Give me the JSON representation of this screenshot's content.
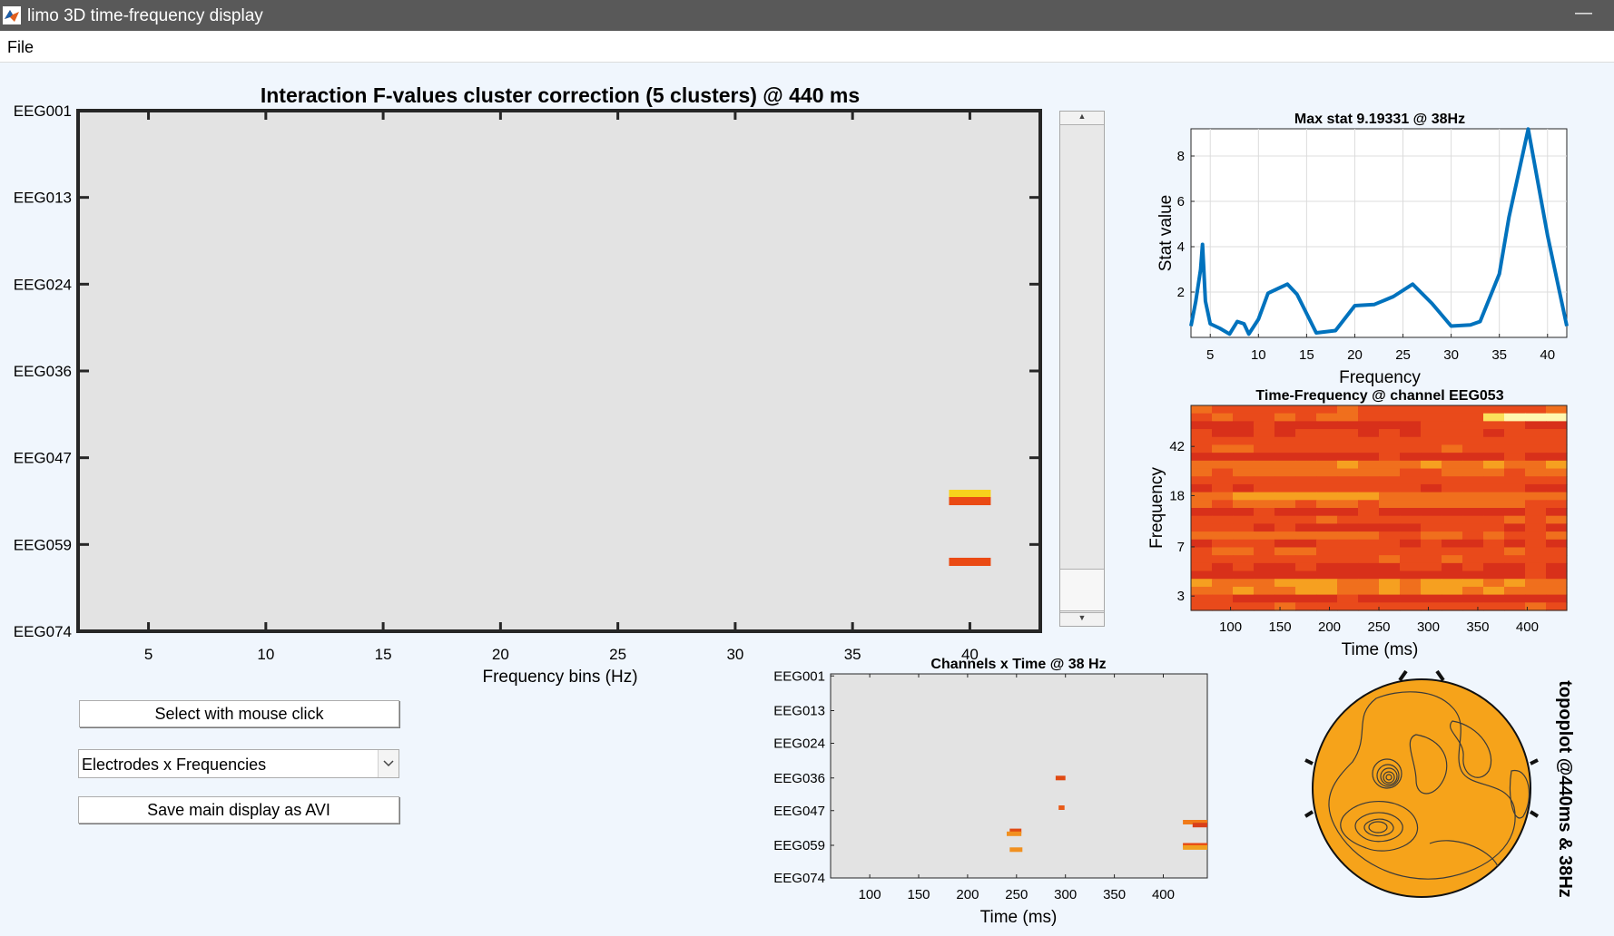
{
  "window": {
    "title": "limo 3D time-frequency display",
    "minimize_glyph": "—"
  },
  "menu": {
    "file": "File"
  },
  "controls": {
    "select_button": "Select with mouse click",
    "view_dropdown_value": "Electrodes x Frequencies",
    "save_button": "Save main display as AVI"
  },
  "icons": {
    "app": "matlab-app-icon",
    "dropdown": "chevron-down-icon",
    "scroll_up": "scroll-up-icon",
    "scroll_down": "scroll-down-icon"
  },
  "main_plot": {
    "title": "Interaction F-values cluster correction (5 clusters) @ 440 ms",
    "xlabel": "Frequency bins (Hz)",
    "xticks": [
      "5",
      "10",
      "15",
      "20",
      "25",
      "30",
      "35",
      "40"
    ],
    "yticks": [
      "EEG001",
      "EEG013",
      "EEG024",
      "EEG036",
      "EEG047",
      "EEG059",
      "EEG074"
    ],
    "background": "#e3e3e3"
  },
  "max_stat_plot": {
    "title": "Max stat 9.19331 @ 38Hz",
    "xlabel": "Frequency",
    "ylabel": "Stat value",
    "xticks": [
      "5",
      "10",
      "15",
      "20",
      "25",
      "30",
      "35",
      "40"
    ],
    "yticks": [
      "2",
      "4",
      "6",
      "8"
    ],
    "line_color": "#0072bd"
  },
  "tf_plot": {
    "title": "Time-Frequency @ channel EEG053",
    "xlabel": "Time (ms)",
    "ylabel": "Frequency",
    "xticks": [
      "100",
      "150",
      "200",
      "250",
      "300",
      "350",
      "400"
    ],
    "yticks": [
      "42",
      "18",
      "7",
      "3"
    ]
  },
  "ct_plot": {
    "title": "Channels x Time @ 38 Hz",
    "xlabel": "Time (ms)",
    "xticks": [
      "100",
      "150",
      "200",
      "250",
      "300",
      "350",
      "400"
    ],
    "yticks": [
      "EEG001",
      "EEG013",
      "EEG024",
      "EEG036",
      "EEG047",
      "EEG059",
      "EEG074"
    ]
  },
  "topoplot": {
    "label": "topoplot @440ms & 38Hz",
    "fill": "#f6a31a"
  },
  "chart_data": [
    {
      "type": "line",
      "title": "Max stat 9.19331 @ 38Hz",
      "xlabel": "Frequency",
      "ylabel": "Stat value",
      "xlim": [
        3,
        42
      ],
      "ylim": [
        0,
        9.2
      ],
      "grid": true,
      "series": [
        {
          "x": [
            3,
            3.5,
            4,
            4.2,
            4.5,
            5,
            6,
            7,
            7.8,
            8.5,
            9,
            10,
            11,
            13,
            14,
            16,
            18,
            20,
            22,
            24,
            26,
            28,
            30,
            32,
            33,
            35,
            36,
            38,
            40,
            42
          ],
          "y": [
            0.5,
            1.6,
            3.0,
            4.1,
            1.6,
            0.6,
            0.4,
            0.15,
            0.7,
            0.6,
            0.15,
            0.8,
            1.95,
            2.35,
            1.9,
            0.2,
            0.3,
            1.4,
            1.45,
            1.8,
            2.35,
            1.5,
            0.5,
            0.55,
            0.7,
            2.8,
            5.3,
            9.19,
            4.5,
            0.5
          ]
        }
      ]
    },
    {
      "type": "heatmap",
      "title": "Interaction F-values cluster correction (5 clusters) @ 440 ms",
      "xlabel": "Frequency bins (Hz)",
      "xlim": [
        2,
        43
      ],
      "cells": [
        {
          "x": 40,
          "channel": "EEG052",
          "color": "#f7d21c"
        },
        {
          "x": 40,
          "channel": "EEG053",
          "color": "#ea4a14"
        },
        {
          "x": 40,
          "channel": "EEG062",
          "color": "#ea4a14"
        }
      ]
    },
    {
      "type": "heatmap",
      "title": "Channels x Time @ 38 Hz",
      "xlabel": "Time (ms)",
      "xlim": [
        60,
        445
      ],
      "cells": [
        {
          "t0": 290,
          "t1": 300,
          "channel": "EEG036",
          "color": "#e04a14"
        },
        {
          "t0": 293,
          "t1": 299,
          "channel": "EEG046",
          "color": "#e85a18"
        },
        {
          "t0": 243,
          "t1": 255,
          "channel": "EEG054",
          "color": "#e04a14"
        },
        {
          "t0": 240,
          "t1": 255,
          "channel": "EEG055",
          "color": "#f19020"
        },
        {
          "t0": 243,
          "t1": 256,
          "channel": "EEG061",
          "color": "#f19020"
        },
        {
          "t0": 420,
          "t1": 445,
          "channel": "EEG051",
          "color": "#f07a18"
        },
        {
          "t0": 430,
          "t1": 445,
          "channel": "EEG052",
          "color": "#d8401a"
        },
        {
          "t0": 420,
          "t1": 445,
          "channel": "EEG059",
          "color": "#e84a14"
        },
        {
          "t0": 420,
          "t1": 445,
          "channel": "EEG060",
          "color": "#f0a020"
        }
      ]
    },
    {
      "type": "heatmap",
      "title": "Time-Frequency @ channel EEG053",
      "xlabel": "Time (ms)",
      "ylabel": "Frequency",
      "xlim": [
        60,
        440
      ],
      "colormap": [
        "#d8301a",
        "#e94a1b",
        "#f06f1d",
        "#f6a020",
        "#fbe05a",
        "#fff8b0"
      ]
    }
  ]
}
